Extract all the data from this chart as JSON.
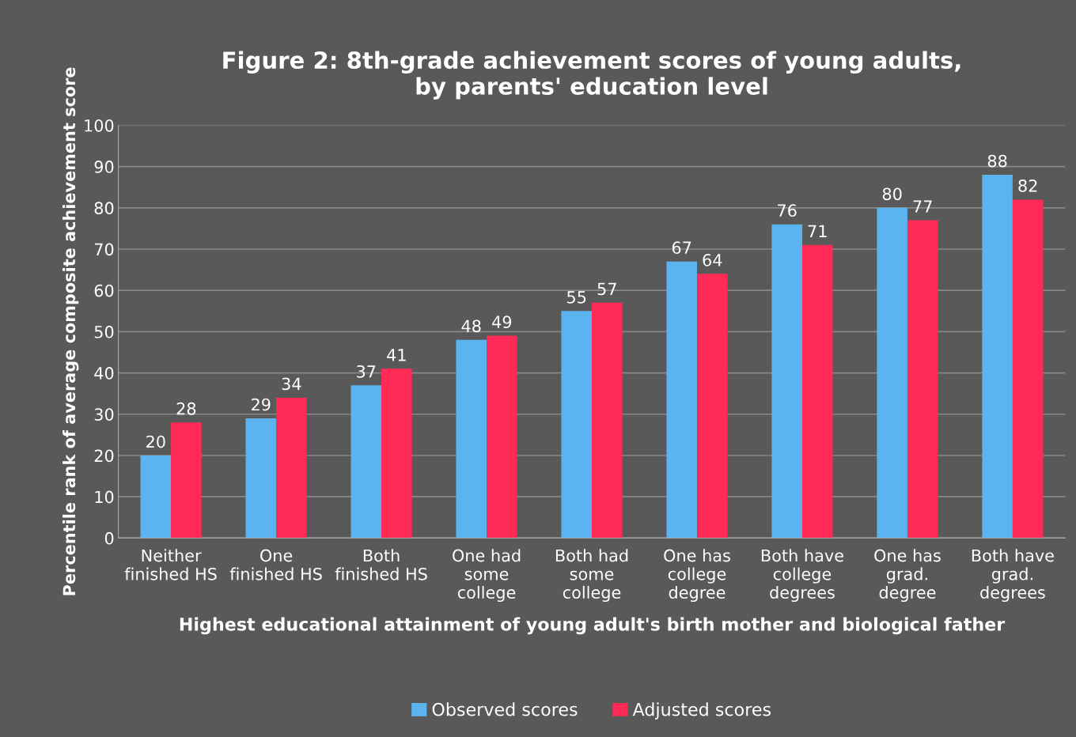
{
  "chart_data": {
    "type": "bar",
    "title": "Figure 2: 8th-grade achievement scores of young adults,\nby parents' education level",
    "xlabel": "Highest educational attainment of young adult's birth mother and biological father",
    "ylabel": "Percentile rank of average composite achievement score",
    "categories": [
      "Neither\nfinished HS",
      "One\nfinished HS",
      "Both\nfinished HS",
      "One had\nsome\ncollege",
      "Both had\nsome\ncollege",
      "One has\ncollege\ndegree",
      "Both have\ncollege\ndegrees",
      "One has\ngrad.\ndegree",
      "Both have\ngrad.\ndegrees"
    ],
    "series": [
      {
        "name": "Observed scores",
        "color": "#5bb4ef",
        "values": [
          20,
          29,
          37,
          48,
          55,
          67,
          76,
          80,
          88
        ]
      },
      {
        "name": "Adjusted scores",
        "color": "#ff2a55",
        "values": [
          28,
          34,
          41,
          49,
          57,
          64,
          71,
          77,
          82
        ]
      }
    ],
    "ylim": [
      0,
      100
    ],
    "yticks": [
      0,
      10,
      20,
      30,
      40,
      50,
      60,
      70,
      80,
      90,
      100
    ],
    "grid": "y",
    "legend": "bottom",
    "data_labels": true
  }
}
